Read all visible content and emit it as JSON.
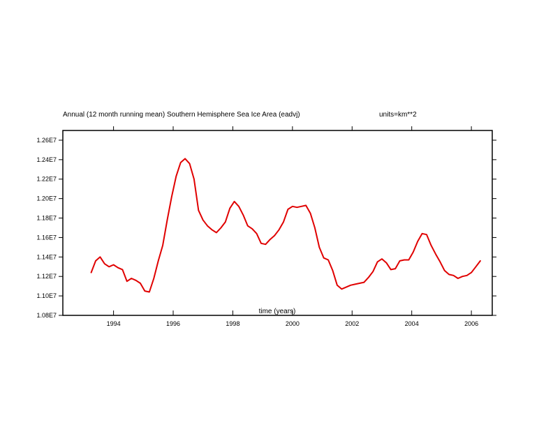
{
  "chart_data": {
    "type": "line",
    "title": "Annual (12 month running mean) Southern Hemisphere Sea Ice Area (eadvj)",
    "units_label": "units=km**2",
    "xlabel": "time (years)",
    "ylabel": "",
    "xlim": [
      1992.3,
      2006.7
    ],
    "ylim": [
      10800000,
      12700000
    ],
    "x_ticks": [
      1994,
      1996,
      1998,
      2000,
      2002,
      2004,
      2006
    ],
    "x_tick_labels": [
      "1994",
      "1996",
      "1998",
      "2000",
      "2002",
      "2004",
      "2006"
    ],
    "y_ticks": [
      10800000,
      11000000,
      11200000,
      11400000,
      11600000,
      11800000,
      12000000,
      12200000,
      12400000,
      12600000
    ],
    "y_tick_labels": [
      "1.08E7",
      "1.10E7",
      "1.12E7",
      "1.14E7",
      "1.16E7",
      "1.18E7",
      "1.20E7",
      "1.22E7",
      "1.24E7",
      "1.26E7"
    ],
    "grid": false,
    "series": [
      {
        "color": "#e00000",
        "x": [
          1993.25,
          1993.4,
          1993.55,
          1993.7,
          1993.85,
          1994.0,
          1994.15,
          1994.3,
          1994.45,
          1994.6,
          1994.75,
          1994.9,
          1995.05,
          1995.2,
          1995.35,
          1995.5,
          1995.65,
          1995.8,
          1995.95,
          1996.1,
          1996.25,
          1996.4,
          1996.55,
          1996.7,
          1996.85,
          1997.0,
          1997.15,
          1997.3,
          1997.45,
          1997.6,
          1997.75,
          1997.9,
          1998.05,
          1998.2,
          1998.35,
          1998.5,
          1998.65,
          1998.8,
          1998.95,
          1999.1,
          1999.25,
          1999.4,
          1999.55,
          1999.7,
          1999.85,
          2000.0,
          2000.15,
          2000.3,
          2000.45,
          2000.6,
          2000.75,
          2000.9,
          2001.05,
          2001.2,
          2001.35,
          2001.5,
          2001.65,
          2001.8,
          2001.95,
          2002.1,
          2002.25,
          2002.4,
          2002.55,
          2002.7,
          2002.85,
          2003.0,
          2003.15,
          2003.3,
          2003.45,
          2003.6,
          2003.75,
          2003.9,
          2004.05,
          2004.2,
          2004.35,
          2004.5,
          2004.65,
          2004.8,
          2004.95,
          2005.1,
          2005.25,
          2005.4,
          2005.55,
          2005.7,
          2005.85,
          2006.0,
          2006.15,
          2006.3
        ],
        "y": [
          11240000,
          11360000,
          11400000,
          11330000,
          11300000,
          11320000,
          11290000,
          11270000,
          11150000,
          11180000,
          11160000,
          11130000,
          11050000,
          11040000,
          11180000,
          11360000,
          11520000,
          11780000,
          12020000,
          12230000,
          12370000,
          12410000,
          12360000,
          12200000,
          11880000,
          11780000,
          11720000,
          11680000,
          11650000,
          11700000,
          11760000,
          11900000,
          11970000,
          11920000,
          11830000,
          11720000,
          11690000,
          11640000,
          11540000,
          11530000,
          11580000,
          11620000,
          11680000,
          11760000,
          11890000,
          11920000,
          11910000,
          11920000,
          11930000,
          11850000,
          11700000,
          11500000,
          11390000,
          11370000,
          11260000,
          11110000,
          11070000,
          11090000,
          11110000,
          11120000,
          11130000,
          11140000,
          11190000,
          11250000,
          11350000,
          11380000,
          11340000,
          11270000,
          11280000,
          11360000,
          11370000,
          11370000,
          11450000,
          11560000,
          11640000,
          11630000,
          11520000,
          11430000,
          11350000,
          11260000,
          11220000,
          11210000,
          11180000,
          11200000,
          11210000,
          11240000,
          11300000,
          11360000
        ]
      }
    ]
  }
}
